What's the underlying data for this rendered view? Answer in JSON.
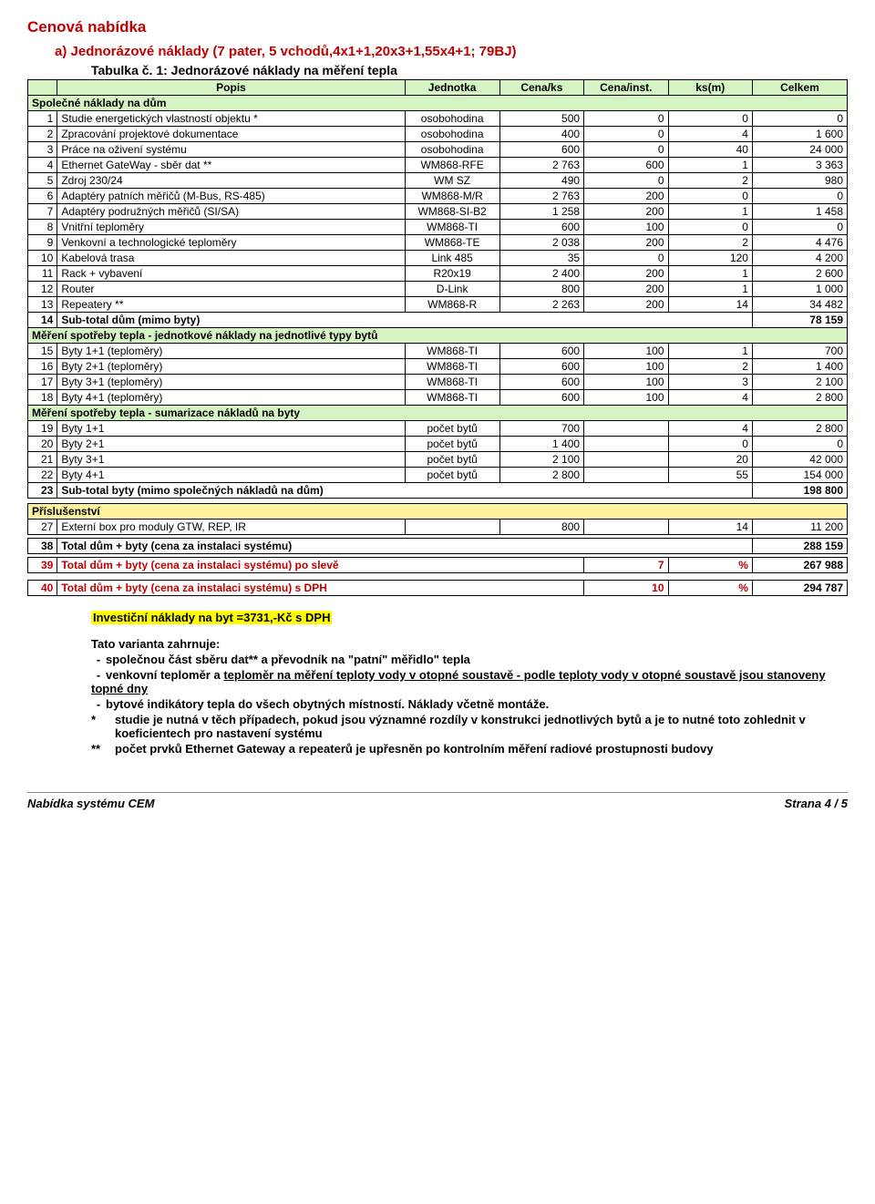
{
  "titles": {
    "main": "Cenová nabídka",
    "sub": "a) Jednorázové náklady (7 pater, 5 vchodů,4x1+1,20x3+1,55x4+1; 79BJ)",
    "tab": "Tabulka č. 1: Jednorázové náklady na měření tepla"
  },
  "headers": [
    "",
    "Popis",
    "Jednotka",
    "Cena/ks",
    "Cena/inst.",
    "ks(m)",
    "Celkem"
  ],
  "sections": {
    "s1": "Společné náklady na dům",
    "s2": "Měření spotřeby tepla - jednotkové náklady na jednotlivé typy bytů",
    "s3": "Měření spotřeby tepla - sumarizace nákladů na byty",
    "s4": "Příslušenství"
  },
  "rows1": [
    {
      "n": "1",
      "d": "Studie energetických vlastností objektu *",
      "u": "osobohodina",
      "c1": "500",
      "c2": "0",
      "c3": "0",
      "c4": "0"
    },
    {
      "n": "2",
      "d": "Zpracování projektové dokumentace",
      "u": "osobohodina",
      "c1": "400",
      "c2": "0",
      "c3": "4",
      "c4": "1 600"
    },
    {
      "n": "3",
      "d": "Práce na oživení systému",
      "u": "osobohodina",
      "c1": "600",
      "c2": "0",
      "c3": "40",
      "c4": "24 000"
    },
    {
      "n": "4",
      "d": "Ethernet GateWay - sběr dat **",
      "u": "WM868-RFE",
      "c1": "2 763",
      "c2": "600",
      "c3": "1",
      "c4": "3 363"
    },
    {
      "n": "5",
      "d": "Zdroj 230/24",
      "u": "WM SZ",
      "c1": "490",
      "c2": "0",
      "c3": "2",
      "c4": "980"
    },
    {
      "n": "6",
      "d": "Adaptéry patních měřičů (M-Bus, RS-485)",
      "u": "WM868-M/R",
      "c1": "2 763",
      "c2": "200",
      "c3": "0",
      "c4": "0"
    },
    {
      "n": "7",
      "d": "Adaptéry podružných měřičů (SI/SA)",
      "u": "WM868-SI-B2",
      "c1": "1 258",
      "c2": "200",
      "c3": "1",
      "c4": "1 458"
    },
    {
      "n": "8",
      "d": "Vnitřní teploměry",
      "u": "WM868-TI",
      "c1": "600",
      "c2": "100",
      "c3": "0",
      "c4": "0"
    },
    {
      "n": "9",
      "d": "Venkovní a technologické teploměry",
      "u": "WM868-TE",
      "c1": "2 038",
      "c2": "200",
      "c3": "2",
      "c4": "4 476"
    },
    {
      "n": "10",
      "d": "Kabelová trasa",
      "u": "Link 485",
      "c1": "35",
      "c2": "0",
      "c3": "120",
      "c4": "4 200"
    },
    {
      "n": "11",
      "d": "Rack + vybavení",
      "u": "R20x19",
      "c1": "2 400",
      "c2": "200",
      "c3": "1",
      "c4": "2 600"
    },
    {
      "n": "12",
      "d": "Router",
      "u": "D-Link",
      "c1": "800",
      "c2": "200",
      "c3": "1",
      "c4": "1 000"
    },
    {
      "n": "13",
      "d": "Repeatery **",
      "u": "WM868-R",
      "c1": "2 263",
      "c2": "200",
      "c3": "14",
      "c4": "34 482"
    }
  ],
  "sub1": {
    "n": "14",
    "d": "Sub-total dům (mimo byty)",
    "c4": "78 159"
  },
  "rows2": [
    {
      "n": "15",
      "d": "Byty 1+1 (teploměry)",
      "u": "WM868-TI",
      "c1": "600",
      "c2": "100",
      "c3": "1",
      "c4": "700"
    },
    {
      "n": "16",
      "d": "Byty 2+1 (teploměry)",
      "u": "WM868-TI",
      "c1": "600",
      "c2": "100",
      "c3": "2",
      "c4": "1 400"
    },
    {
      "n": "17",
      "d": "Byty 3+1 (teploměry)",
      "u": "WM868-TI",
      "c1": "600",
      "c2": "100",
      "c3": "3",
      "c4": "2 100"
    },
    {
      "n": "18",
      "d": "Byty 4+1 (teploměry)",
      "u": "WM868-TI",
      "c1": "600",
      "c2": "100",
      "c3": "4",
      "c4": "2 800"
    }
  ],
  "rows3": [
    {
      "n": "19",
      "d": "Byty 1+1",
      "u": "počet bytů",
      "c1": "700",
      "c2": "",
      "c3": "4",
      "c4": "2 800"
    },
    {
      "n": "20",
      "d": "Byty 2+1",
      "u": "počet bytů",
      "c1": "1 400",
      "c2": "",
      "c3": "0",
      "c4": "0"
    },
    {
      "n": "21",
      "d": "Byty 3+1",
      "u": "počet bytů",
      "c1": "2 100",
      "c2": "",
      "c3": "20",
      "c4": "42 000"
    },
    {
      "n": "22",
      "d": "Byty 4+1",
      "u": "počet bytů",
      "c1": "2 800",
      "c2": "",
      "c3": "55",
      "c4": "154 000"
    }
  ],
  "sub3": {
    "n": "23",
    "d": "Sub-total byty (mimo společných nákladů na dům)",
    "c4": "198 800"
  },
  "rows4": [
    {
      "n": "27",
      "d": "Externí box pro moduly GTW, REP, IR",
      "u": "",
      "c1": "800",
      "c2": "",
      "c3": "14",
      "c4": "11 200"
    }
  ],
  "totals": {
    "t38": {
      "n": "38",
      "d": "Total dům + byty (cena za instalaci systému)",
      "c4": "288 159"
    },
    "t39": {
      "n": "39",
      "d": "Total dům + byty (cena za instalaci systému) po slevě",
      "p1": "7",
      "p2": "%",
      "c4": "267 988"
    },
    "t40": {
      "n": "40",
      "d": "Total dům + byty (cena za instalaci systému) s DPH",
      "p1": "10",
      "p2": "%",
      "c4": "294 787"
    }
  },
  "invest": "Investiční náklady na byt =3731,-Kč s DPH",
  "notes": {
    "intro": "Tato varianta zahrnuje:",
    "b1": "společnou část sběru dat** a převodník na \"patní\" měřidlo\" tepla",
    "b2a": "venkovní teploměr a ",
    "b2b": "teploměr na měření teploty vody v otopné soustavě - podle teploty vody v otopné soustavě jsou stanoveny topné dny",
    "b3": "bytové indikátory tepla do všech obytných místností. Náklady včetně montáže.",
    "star1": "studie je nutná v těch případech, pokud jsou významné rozdíly v konstrukci jednotlivých bytů a je to nutné toto zohlednit v koeficientech pro nastavení systému",
    "star2": "počet prvků Ethernet Gateway a repeaterů je upřesněn po kontrolním měření radiové prostupnosti budovy"
  },
  "footer": {
    "left": "Nabídka systému CEM",
    "right": "Strana 4 / 5"
  }
}
